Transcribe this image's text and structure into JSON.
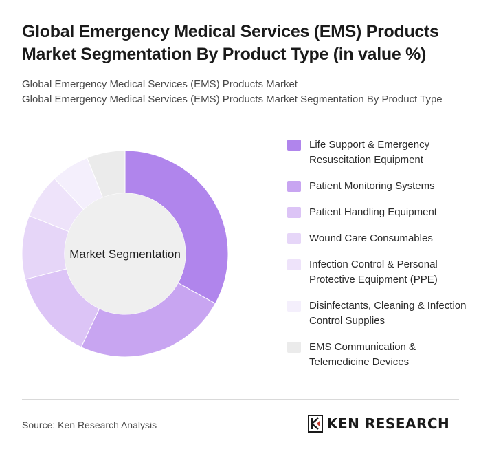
{
  "title": "Global Emergency Medical Services (EMS) Products Market Segmentation By Product Type (in value %)",
  "subtitle_line1": "Global Emergency Medical Services (EMS) Products Market",
  "subtitle_line2": "Global Emergency Medical Services (EMS) Products Market Segmentation By Product Type",
  "source": "Source: Ken Research Analysis",
  "logo_text": "KEN RESEARCH",
  "chart_data": {
    "type": "pie",
    "donut": true,
    "center_label": "Market Segmentation",
    "categories": [
      "Life Support & Emergency Resuscitation Equipment",
      "Patient Monitoring Systems",
      "Patient Handling Equipment",
      "Wound Care Consumables",
      "Infection Control & Personal Protective Equipment (PPE)",
      "Disinfectants, Cleaning & Infection Control Supplies",
      "EMS Communication & Telemedicine Devices"
    ],
    "values": [
      33,
      24,
      14,
      10,
      7,
      6,
      6
    ],
    "colors": [
      "#b085ec",
      "#c8a5f1",
      "#dcc4f6",
      "#e6d6f8",
      "#eee3fa",
      "#f4effc",
      "#ebebeb"
    ],
    "legend_position": "right"
  }
}
